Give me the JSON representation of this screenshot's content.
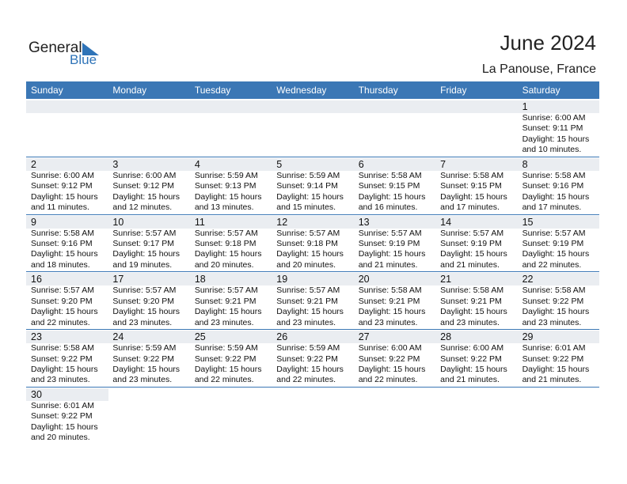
{
  "header": {
    "logo": {
      "general": "General",
      "blue": "Blue"
    },
    "title": "June 2024",
    "location": "La Panouse, France"
  },
  "weekdays": [
    "Sunday",
    "Monday",
    "Tuesday",
    "Wednesday",
    "Thursday",
    "Friday",
    "Saturday"
  ],
  "weeks": [
    [
      null,
      null,
      null,
      null,
      null,
      null,
      {
        "day": 1,
        "sunrise": "Sunrise: 6:00 AM",
        "sunset": "Sunset: 9:11 PM",
        "daylight": "Daylight: 15 hours",
        "minutes": "and 10 minutes."
      }
    ],
    [
      {
        "day": 2,
        "sunrise": "Sunrise: 6:00 AM",
        "sunset": "Sunset: 9:12 PM",
        "daylight": "Daylight: 15 hours",
        "minutes": "and 11 minutes."
      },
      {
        "day": 3,
        "sunrise": "Sunrise: 6:00 AM",
        "sunset": "Sunset: 9:12 PM",
        "daylight": "Daylight: 15 hours",
        "minutes": "and 12 minutes."
      },
      {
        "day": 4,
        "sunrise": "Sunrise: 5:59 AM",
        "sunset": "Sunset: 9:13 PM",
        "daylight": "Daylight: 15 hours",
        "minutes": "and 13 minutes."
      },
      {
        "day": 5,
        "sunrise": "Sunrise: 5:59 AM",
        "sunset": "Sunset: 9:14 PM",
        "daylight": "Daylight: 15 hours",
        "minutes": "and 15 minutes."
      },
      {
        "day": 6,
        "sunrise": "Sunrise: 5:58 AM",
        "sunset": "Sunset: 9:15 PM",
        "daylight": "Daylight: 15 hours",
        "minutes": "and 16 minutes."
      },
      {
        "day": 7,
        "sunrise": "Sunrise: 5:58 AM",
        "sunset": "Sunset: 9:15 PM",
        "daylight": "Daylight: 15 hours",
        "minutes": "and 17 minutes."
      },
      {
        "day": 8,
        "sunrise": "Sunrise: 5:58 AM",
        "sunset": "Sunset: 9:16 PM",
        "daylight": "Daylight: 15 hours",
        "minutes": "and 17 minutes."
      }
    ],
    [
      {
        "day": 9,
        "sunrise": "Sunrise: 5:58 AM",
        "sunset": "Sunset: 9:16 PM",
        "daylight": "Daylight: 15 hours",
        "minutes": "and 18 minutes."
      },
      {
        "day": 10,
        "sunrise": "Sunrise: 5:57 AM",
        "sunset": "Sunset: 9:17 PM",
        "daylight": "Daylight: 15 hours",
        "minutes": "and 19 minutes."
      },
      {
        "day": 11,
        "sunrise": "Sunrise: 5:57 AM",
        "sunset": "Sunset: 9:18 PM",
        "daylight": "Daylight: 15 hours",
        "minutes": "and 20 minutes."
      },
      {
        "day": 12,
        "sunrise": "Sunrise: 5:57 AM",
        "sunset": "Sunset: 9:18 PM",
        "daylight": "Daylight: 15 hours",
        "minutes": "and 20 minutes."
      },
      {
        "day": 13,
        "sunrise": "Sunrise: 5:57 AM",
        "sunset": "Sunset: 9:19 PM",
        "daylight": "Daylight: 15 hours",
        "minutes": "and 21 minutes."
      },
      {
        "day": 14,
        "sunrise": "Sunrise: 5:57 AM",
        "sunset": "Sunset: 9:19 PM",
        "daylight": "Daylight: 15 hours",
        "minutes": "and 21 minutes."
      },
      {
        "day": 15,
        "sunrise": "Sunrise: 5:57 AM",
        "sunset": "Sunset: 9:19 PM",
        "daylight": "Daylight: 15 hours",
        "minutes": "and 22 minutes."
      }
    ],
    [
      {
        "day": 16,
        "sunrise": "Sunrise: 5:57 AM",
        "sunset": "Sunset: 9:20 PM",
        "daylight": "Daylight: 15 hours",
        "minutes": "and 22 minutes."
      },
      {
        "day": 17,
        "sunrise": "Sunrise: 5:57 AM",
        "sunset": "Sunset: 9:20 PM",
        "daylight": "Daylight: 15 hours",
        "minutes": "and 23 minutes."
      },
      {
        "day": 18,
        "sunrise": "Sunrise: 5:57 AM",
        "sunset": "Sunset: 9:21 PM",
        "daylight": "Daylight: 15 hours",
        "minutes": "and 23 minutes."
      },
      {
        "day": 19,
        "sunrise": "Sunrise: 5:57 AM",
        "sunset": "Sunset: 9:21 PM",
        "daylight": "Daylight: 15 hours",
        "minutes": "and 23 minutes."
      },
      {
        "day": 20,
        "sunrise": "Sunrise: 5:58 AM",
        "sunset": "Sunset: 9:21 PM",
        "daylight": "Daylight: 15 hours",
        "minutes": "and 23 minutes."
      },
      {
        "day": 21,
        "sunrise": "Sunrise: 5:58 AM",
        "sunset": "Sunset: 9:21 PM",
        "daylight": "Daylight: 15 hours",
        "minutes": "and 23 minutes."
      },
      {
        "day": 22,
        "sunrise": "Sunrise: 5:58 AM",
        "sunset": "Sunset: 9:22 PM",
        "daylight": "Daylight: 15 hours",
        "minutes": "and 23 minutes."
      }
    ],
    [
      {
        "day": 23,
        "sunrise": "Sunrise: 5:58 AM",
        "sunset": "Sunset: 9:22 PM",
        "daylight": "Daylight: 15 hours",
        "minutes": "and 23 minutes."
      },
      {
        "day": 24,
        "sunrise": "Sunrise: 5:59 AM",
        "sunset": "Sunset: 9:22 PM",
        "daylight": "Daylight: 15 hours",
        "minutes": "and 23 minutes."
      },
      {
        "day": 25,
        "sunrise": "Sunrise: 5:59 AM",
        "sunset": "Sunset: 9:22 PM",
        "daylight": "Daylight: 15 hours",
        "minutes": "and 22 minutes."
      },
      {
        "day": 26,
        "sunrise": "Sunrise: 5:59 AM",
        "sunset": "Sunset: 9:22 PM",
        "daylight": "Daylight: 15 hours",
        "minutes": "and 22 minutes."
      },
      {
        "day": 27,
        "sunrise": "Sunrise: 6:00 AM",
        "sunset": "Sunset: 9:22 PM",
        "daylight": "Daylight: 15 hours",
        "minutes": "and 22 minutes."
      },
      {
        "day": 28,
        "sunrise": "Sunrise: 6:00 AM",
        "sunset": "Sunset: 9:22 PM",
        "daylight": "Daylight: 15 hours",
        "minutes": "and 21 minutes."
      },
      {
        "day": 29,
        "sunrise": "Sunrise: 6:01 AM",
        "sunset": "Sunset: 9:22 PM",
        "daylight": "Daylight: 15 hours",
        "minutes": "and 21 minutes."
      }
    ],
    [
      {
        "day": 30,
        "sunrise": "Sunrise: 6:01 AM",
        "sunset": "Sunset: 9:22 PM",
        "daylight": "Daylight: 15 hours",
        "minutes": "and 20 minutes."
      },
      null,
      null,
      null,
      null,
      null,
      null
    ]
  ]
}
